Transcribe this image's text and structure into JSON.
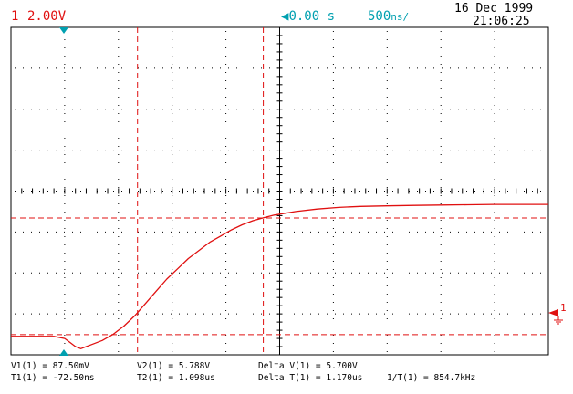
{
  "header": {
    "channel_number": "1",
    "channel_scale": "2.00V",
    "delay": "0.00 s",
    "timebase": "500",
    "timebase_unit_glyph": "ns/",
    "date": "16 Dec 1999",
    "time": "21:06:25"
  },
  "colors": {
    "trace": "#e01010",
    "marker": "#00a0b0",
    "grid": "#000000"
  },
  "markers": {
    "channel_ground_label": "1"
  },
  "measurements": {
    "v1": "V1(1) = 87.50mV",
    "v2": "V2(1) = 5.788V",
    "delta_v": "Delta V(1) = 5.700V",
    "t1": "T1(1) = -72.50ns",
    "t2": "T2(1) = 1.098us",
    "delta_t": "Delta T(1) = 1.170us",
    "freq": "1/T(1) = 854.7kHz"
  },
  "chart_data": {
    "type": "line",
    "title": "",
    "xlabel": "",
    "ylabel": "",
    "x_unit": "us",
    "y_unit": "V",
    "xlim": [
      -1.25,
      3.75
    ],
    "ylim": [
      -0.9,
      15.1
    ],
    "grid": true,
    "cursors": {
      "t1": -0.0725,
      "t2": 1.098,
      "v1": 0.0875,
      "v2": 5.788
    },
    "series": [
      {
        "x": [
          -1.25,
          -1.0,
          -0.85,
          -0.75,
          -0.7,
          -0.65,
          -0.6,
          -0.55,
          -0.5,
          -0.4,
          -0.3,
          -0.2,
          -0.1,
          0.0,
          0.1,
          0.2,
          0.3,
          0.4,
          0.5,
          0.6,
          0.7,
          0.8,
          0.9,
          1.0,
          1.1,
          1.2,
          1.4,
          1.6,
          1.8,
          2.0,
          2.25,
          2.5,
          2.75,
          3.0,
          3.25,
          3.5,
          3.75
        ],
        "values": [
          0.0,
          0.0,
          0.0,
          -0.1,
          -0.3,
          -0.5,
          -0.6,
          -0.5,
          -0.4,
          -0.2,
          0.1,
          0.5,
          1.0,
          1.6,
          2.2,
          2.8,
          3.3,
          3.8,
          4.2,
          4.6,
          4.9,
          5.2,
          5.45,
          5.65,
          5.8,
          5.93,
          6.1,
          6.22,
          6.3,
          6.35,
          6.38,
          6.4,
          6.42,
          6.43,
          6.45,
          6.45,
          6.45
        ]
      }
    ]
  }
}
